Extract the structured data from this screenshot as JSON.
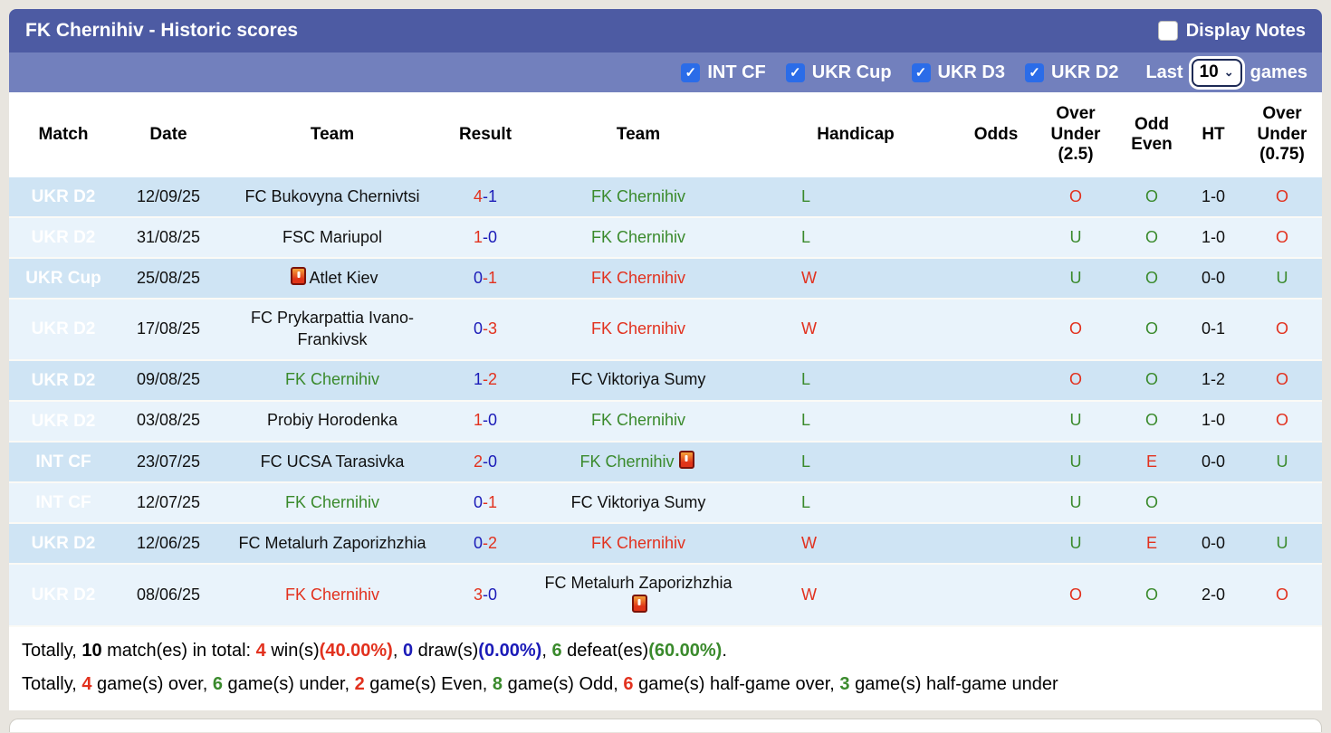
{
  "header": {
    "title": "FK Chernihiv - Historic scores",
    "display_notes_label": "Display Notes",
    "display_notes_checked": false
  },
  "filters": {
    "competitions": [
      {
        "label": "INT CF",
        "checked": true
      },
      {
        "label": "UKR Cup",
        "checked": true
      },
      {
        "label": "UKR D3",
        "checked": true
      },
      {
        "label": "UKR D2",
        "checked": true
      }
    ],
    "last_label": "Last",
    "games_value": "10",
    "games_label": "games"
  },
  "table": {
    "headers": {
      "match": "Match",
      "date": "Date",
      "team1": "Team",
      "result": "Result",
      "team2": "Team",
      "handicap": "Handicap",
      "odds": "Odds",
      "over_under_25": "Over Under (2.5)",
      "odd_even": "Odd Even",
      "ht": "HT",
      "over_under_075": "Over Under (0.75)"
    },
    "rows": [
      {
        "league": "UKR D2",
        "league_style": "gold",
        "date": "12/09/25",
        "team1": "FC Bukovyna Chernivtsi",
        "team1_color": "black",
        "score_left": "4",
        "score_left_color": "red",
        "score_right": "-1",
        "score_right_color": "blue",
        "team2": "FK Chernihiv",
        "team2_color": "green",
        "handicap": "L",
        "handicap_color": "green",
        "odds": "",
        "ou25": "O",
        "ou25_color": "red",
        "odd_even": "O",
        "odd_even_color": "green",
        "ht": "1-0",
        "ou075": "O",
        "ou075_color": "red"
      },
      {
        "league": "UKR D2",
        "league_style": "gold",
        "date": "31/08/25",
        "team1": "FSC Mariupol",
        "team1_color": "black",
        "score_left": "1",
        "score_left_color": "red",
        "score_right": "-0",
        "score_right_color": "blue",
        "team2": "FK Chernihiv",
        "team2_color": "green",
        "handicap": "L",
        "handicap_color": "green",
        "odds": "",
        "ou25": "U",
        "ou25_color": "green",
        "odd_even": "O",
        "odd_even_color": "green",
        "ht": "1-0",
        "ou075": "O",
        "ou075_color": "red"
      },
      {
        "league": "UKR Cup",
        "league_style": "gold",
        "date": "25/08/25",
        "team1": "Atlet Kiev",
        "team1_color": "black",
        "team1_icon": "red-card",
        "score_left": "0",
        "score_left_color": "blue",
        "score_right": "-1",
        "score_right_color": "red",
        "team2": "FK Chernihiv",
        "team2_color": "red",
        "handicap": "W",
        "handicap_color": "red",
        "odds": "",
        "ou25": "U",
        "ou25_color": "green",
        "odd_even": "O",
        "odd_even_color": "green",
        "ht": "0-0",
        "ou075": "U",
        "ou075_color": "green"
      },
      {
        "league": "UKR D2",
        "league_style": "gold",
        "date": "17/08/25",
        "team1": "FC Prykarpattia Ivano-Frankivsk",
        "team1_color": "black",
        "score_left": "0",
        "score_left_color": "blue",
        "score_right": "-3",
        "score_right_color": "red",
        "team2": "FK Chernihiv",
        "team2_color": "red",
        "handicap": "W",
        "handicap_color": "red",
        "odds": "",
        "ou25": "O",
        "ou25_color": "red",
        "odd_even": "O",
        "odd_even_color": "green",
        "ht": "0-1",
        "ou075": "O",
        "ou075_color": "red"
      },
      {
        "league": "UKR D2",
        "league_style": "gold",
        "date": "09/08/25",
        "team1": "FK Chernihiv",
        "team1_color": "green",
        "score_left": "1",
        "score_left_color": "blue",
        "score_right": "-2",
        "score_right_color": "red",
        "team2": "FC Viktoriya Sumy",
        "team2_color": "black",
        "handicap": "L",
        "handicap_color": "green",
        "odds": "",
        "ou25": "O",
        "ou25_color": "red",
        "odd_even": "O",
        "odd_even_color": "green",
        "ht": "1-2",
        "ou075": "O",
        "ou075_color": "red"
      },
      {
        "league": "UKR D2",
        "league_style": "gold",
        "date": "03/08/25",
        "team1": "Probiy Horodenka",
        "team1_color": "black",
        "score_left": "1",
        "score_left_color": "red",
        "score_right": "-0",
        "score_right_color": "blue",
        "team2": "FK Chernihiv",
        "team2_color": "green",
        "handicap": "L",
        "handicap_color": "green",
        "odds": "",
        "ou25": "U",
        "ou25_color": "green",
        "odd_even": "O",
        "odd_even_color": "green",
        "ht": "1-0",
        "ou075": "O",
        "ou075_color": "red"
      },
      {
        "league": "INT CF",
        "league_style": "blue",
        "date": "23/07/25",
        "team1": "FC UCSA Tarasivka",
        "team1_color": "black",
        "score_left": "2",
        "score_left_color": "red",
        "score_right": "-0",
        "score_right_color": "blue",
        "team2": "FK Chernihiv",
        "team2_color": "green",
        "team2_icon": "red-card",
        "handicap": "L",
        "handicap_color": "green",
        "odds": "",
        "ou25": "U",
        "ou25_color": "green",
        "odd_even": "E",
        "odd_even_color": "red",
        "ht": "0-0",
        "ou075": "U",
        "ou075_color": "green"
      },
      {
        "league": "INT CF",
        "league_style": "blue",
        "date": "12/07/25",
        "team1": "FK Chernihiv",
        "team1_color": "green",
        "score_left": "0",
        "score_left_color": "blue",
        "score_right": "-1",
        "score_right_color": "red",
        "team2": "FC Viktoriya Sumy",
        "team2_color": "black",
        "handicap": "L",
        "handicap_color": "green",
        "odds": "",
        "ou25": "U",
        "ou25_color": "green",
        "odd_even": "O",
        "odd_even_color": "green",
        "ht": "",
        "ou075": "",
        "ou075_color": "black"
      },
      {
        "league": "UKR D2",
        "league_style": "gold",
        "date": "12/06/25",
        "team1": "FC Metalurh Zaporizhzhia",
        "team1_color": "black",
        "score_left": "0",
        "score_left_color": "blue",
        "score_right": "-2",
        "score_right_color": "red",
        "team2": "FK Chernihiv",
        "team2_color": "red",
        "handicap": "W",
        "handicap_color": "red",
        "odds": "",
        "ou25": "U",
        "ou25_color": "green",
        "odd_even": "E",
        "odd_even_color": "red",
        "ht": "0-0",
        "ou075": "U",
        "ou075_color": "green"
      },
      {
        "league": "UKR D2",
        "league_style": "gold",
        "date": "08/06/25",
        "team1": "FK Chernihiv",
        "team1_color": "red",
        "score_left": "3",
        "score_left_color": "red",
        "score_right": "-0",
        "score_right_color": "blue",
        "team2": "FC Metalurh Zaporizhzhia",
        "team2_color": "black",
        "team2_icon": "red-card",
        "handicap": "W",
        "handicap_color": "red",
        "odds": "",
        "ou25": "O",
        "ou25_color": "red",
        "odd_even": "O",
        "odd_even_color": "green",
        "ht": "2-0",
        "ou075": "O",
        "ou075_color": "red"
      }
    ]
  },
  "footer": {
    "line1": [
      {
        "t": "Totally, "
      },
      {
        "t": "10",
        "b": true
      },
      {
        "t": " match(es) in total: "
      },
      {
        "t": "4",
        "c": "red",
        "b": true
      },
      {
        "t": " win(s)"
      },
      {
        "t": "(40.00%)",
        "c": "red",
        "b": true
      },
      {
        "t": ", "
      },
      {
        "t": "0",
        "c": "blue",
        "b": true
      },
      {
        "t": " draw(s)"
      },
      {
        "t": "(0.00%)",
        "c": "blue",
        "b": true
      },
      {
        "t": ", "
      },
      {
        "t": "6",
        "c": "green",
        "b": true
      },
      {
        "t": " defeat(es)"
      },
      {
        "t": "(60.00%)",
        "c": "green",
        "b": true
      },
      {
        "t": "."
      }
    ],
    "line2": [
      {
        "t": "Totally, "
      },
      {
        "t": "4",
        "c": "red",
        "b": true
      },
      {
        "t": " game(s) over, "
      },
      {
        "t": "6",
        "c": "green",
        "b": true
      },
      {
        "t": " game(s) under, "
      },
      {
        "t": "2",
        "c": "red",
        "b": true
      },
      {
        "t": " game(s) Even, "
      },
      {
        "t": "8",
        "c": "green",
        "b": true
      },
      {
        "t": " game(s) Odd, "
      },
      {
        "t": "6",
        "c": "red",
        "b": true
      },
      {
        "t": " game(s) half-game over, "
      },
      {
        "t": "3",
        "c": "green",
        "b": true
      },
      {
        "t": " game(s) half-game under"
      }
    ]
  },
  "colors": {
    "titlebar_bg": "#4d5ba3",
    "filterbar_bg": "#7280bd",
    "checkbox_blue": "#2b6ce8",
    "badge_gold": "#a59030",
    "badge_blue": "#6d95d4",
    "row_odd_bg": "#cfe4f4",
    "row_even_bg": "#e9f3fb",
    "win_red": "#e2311e",
    "loss_green": "#3a8a2c",
    "score_blue": "#1b1bb8"
  }
}
